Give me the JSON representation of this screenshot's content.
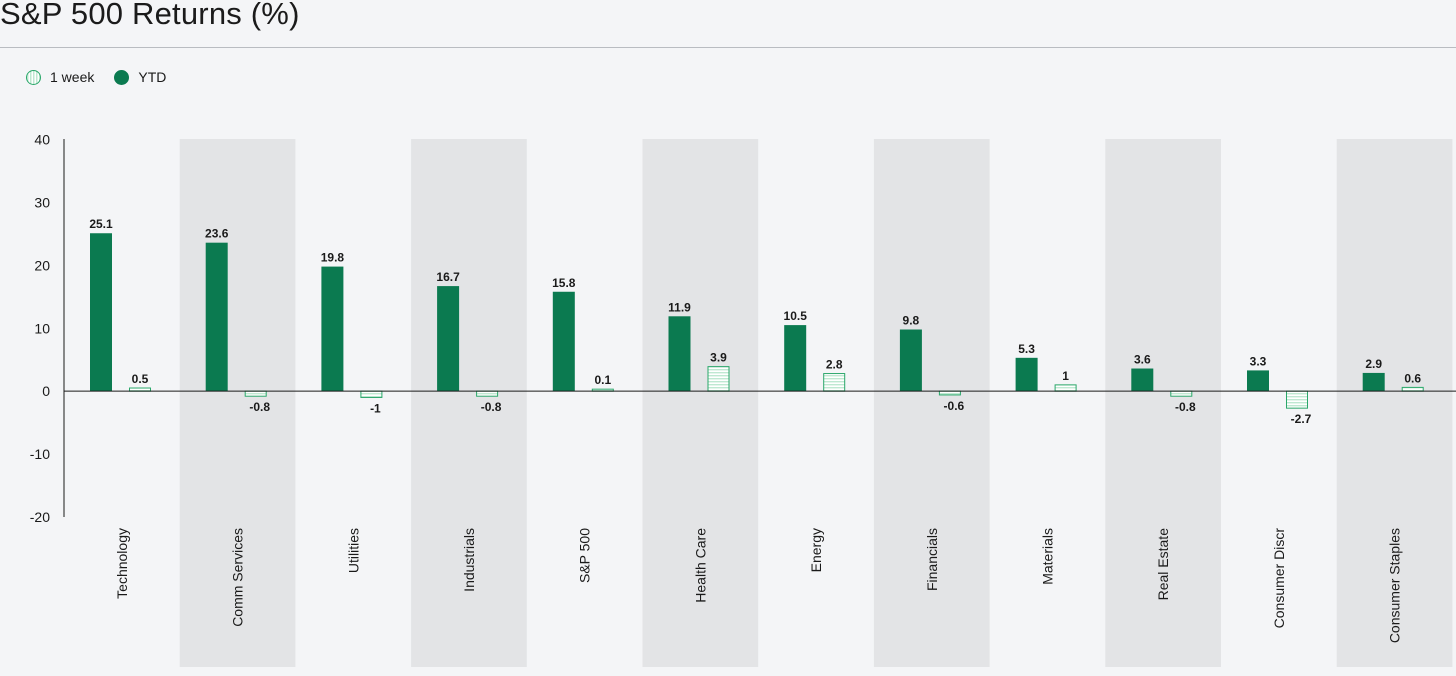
{
  "title": "S&P 500 Returns (%)",
  "legend": [
    {
      "label": "1 week",
      "icon": "hatched-circle-icon"
    },
    {
      "label": "YTD",
      "icon": "solid-circle-icon"
    }
  ],
  "colors": {
    "ytd": "#0b7a50",
    "week_stroke": "#2aa76a",
    "week_hatch": "#bfe8d2",
    "band": "#e3e4e6",
    "axis": "#1a1a1a",
    "background": "#f4f5f7"
  },
  "chart_data": {
    "type": "bar",
    "title": "S&P 500 Returns (%)",
    "xlabel": "",
    "ylabel": "",
    "ylim": [
      -20,
      40
    ],
    "yticks": [
      40,
      30,
      20,
      10,
      0,
      -10,
      -20
    ],
    "grid": false,
    "legend_position": "top-left",
    "categories": [
      "Technology",
      "Comm Services",
      "Utilities",
      "Industrials",
      "S&P 500",
      "Health Care",
      "Energy",
      "Financials",
      "Materials",
      "Real Estate",
      "Consumer Discr",
      "Consumer Staples"
    ],
    "series": [
      {
        "name": "YTD",
        "values": [
          25.1,
          23.6,
          19.8,
          16.7,
          15.8,
          11.9,
          10.5,
          9.8,
          5.3,
          3.6,
          3.3,
          2.9
        ]
      },
      {
        "name": "1 week",
        "values": [
          0.5,
          -0.8,
          -1,
          -0.8,
          0.1,
          3.9,
          2.8,
          -0.6,
          1,
          -0.8,
          -2.7,
          0.6
        ]
      }
    ]
  }
}
